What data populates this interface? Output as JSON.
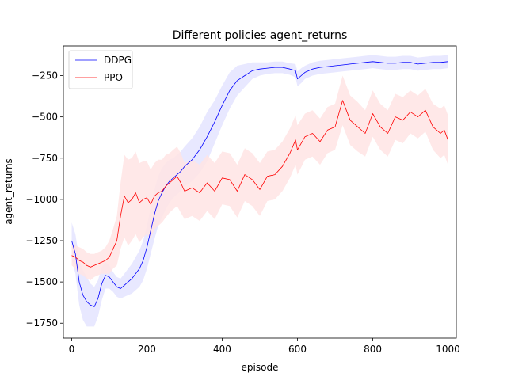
{
  "chart_data": {
    "type": "line",
    "title": "Different policies agent_returns",
    "xlabel": "episode",
    "ylabel": "agent_returns",
    "xlim": [
      -22,
      1022
    ],
    "ylim": [
      -1840,
      -70
    ],
    "xticks": [
      0,
      200,
      400,
      600,
      800,
      1000
    ],
    "yticks": [
      -1750,
      -1500,
      -1250,
      -1000,
      -750,
      -500,
      -250
    ],
    "xtick_labels": [
      "0",
      "200",
      "400",
      "600",
      "800",
      "1000"
    ],
    "ytick_labels": [
      "−1750",
      "−1500",
      "−1250",
      "−1000",
      "−750",
      "−500",
      "−250"
    ],
    "grid": false,
    "legend": {
      "position": "top-left",
      "entries": [
        "DDPG",
        "PPO"
      ]
    },
    "series": [
      {
        "name": "DDPG",
        "color": "#0000ff",
        "band_color": "#e4e4ff",
        "x": [
          0,
          10,
          20,
          30,
          40,
          50,
          60,
          70,
          80,
          90,
          100,
          110,
          120,
          130,
          140,
          150,
          160,
          170,
          180,
          190,
          200,
          210,
          220,
          230,
          240,
          250,
          260,
          270,
          280,
          290,
          300,
          320,
          340,
          360,
          380,
          400,
          420,
          440,
          460,
          480,
          500,
          520,
          540,
          560,
          580,
          595,
          600,
          610,
          620,
          640,
          660,
          680,
          700,
          720,
          740,
          760,
          780,
          800,
          820,
          840,
          860,
          880,
          900,
          920,
          940,
          960,
          980,
          1000
        ],
        "y": [
          -1250,
          -1330,
          -1500,
          -1580,
          -1620,
          -1640,
          -1650,
          -1600,
          -1510,
          -1460,
          -1470,
          -1500,
          -1530,
          -1540,
          -1520,
          -1500,
          -1480,
          -1450,
          -1420,
          -1370,
          -1290,
          -1190,
          -1090,
          -1010,
          -960,
          -920,
          -890,
          -870,
          -850,
          -830,
          -800,
          -760,
          -700,
          -620,
          -530,
          -430,
          -340,
          -280,
          -250,
          -220,
          -210,
          -205,
          -200,
          -200,
          -210,
          -220,
          -270,
          -250,
          -230,
          -210,
          -200,
          -195,
          -190,
          -185,
          -180,
          -175,
          -170,
          -165,
          -170,
          -175,
          -175,
          -170,
          -170,
          -180,
          -175,
          -170,
          -170,
          -165
        ],
        "band": [
          110,
          120,
          140,
          150,
          150,
          130,
          120,
          110,
          100,
          80,
          70,
          60,
          60,
          60,
          70,
          80,
          90,
          100,
          110,
          120,
          130,
          140,
          150,
          150,
          150,
          140,
          130,
          120,
          120,
          120,
          120,
          130,
          140,
          150,
          130,
          120,
          110,
          90,
          70,
          50,
          40,
          35,
          35,
          35,
          35,
          40,
          45,
          45,
          40,
          40,
          40,
          40,
          40,
          40,
          40,
          40,
          40,
          40,
          40,
          40,
          40,
          40,
          40,
          40,
          40,
          40,
          40,
          40
        ]
      },
      {
        "name": "PPO",
        "color": "#ff0000",
        "band_color": "#ffe4e4",
        "x": [
          0,
          10,
          20,
          30,
          40,
          50,
          60,
          70,
          80,
          90,
          100,
          110,
          120,
          130,
          140,
          150,
          160,
          170,
          180,
          190,
          200,
          210,
          220,
          230,
          240,
          250,
          260,
          270,
          280,
          290,
          300,
          320,
          340,
          360,
          380,
          400,
          420,
          440,
          460,
          480,
          500,
          520,
          540,
          560,
          580,
          595,
          600,
          620,
          640,
          660,
          680,
          700,
          720,
          740,
          760,
          780,
          800,
          820,
          840,
          860,
          880,
          900,
          920,
          940,
          960,
          980,
          990,
          1000
        ],
        "y": [
          -1340,
          -1350,
          -1370,
          -1380,
          -1400,
          -1410,
          -1400,
          -1390,
          -1380,
          -1370,
          -1350,
          -1300,
          -1250,
          -1100,
          -980,
          -1020,
          -1000,
          -960,
          -1020,
          -1000,
          -990,
          -1030,
          -980,
          -960,
          -950,
          -920,
          -900,
          -880,
          -860,
          -900,
          -950,
          -930,
          -960,
          -900,
          -950,
          -870,
          -880,
          -950,
          -850,
          -880,
          -940,
          -860,
          -850,
          -800,
          -720,
          -640,
          -700,
          -620,
          -600,
          -650,
          -580,
          -560,
          -400,
          -520,
          -560,
          -600,
          -480,
          -560,
          -600,
          -500,
          -520,
          -470,
          -500,
          -460,
          -560,
          -600,
          -580,
          -640
        ],
        "band": [
          60,
          70,
          80,
          80,
          80,
          80,
          70,
          70,
          70,
          80,
          100,
          120,
          150,
          200,
          250,
          260,
          250,
          250,
          240,
          230,
          220,
          210,
          200,
          200,
          190,
          190,
          180,
          180,
          180,
          180,
          170,
          170,
          170,
          170,
          170,
          160,
          160,
          160,
          160,
          160,
          160,
          150,
          150,
          150,
          150,
          150,
          150,
          140,
          140,
          140,
          140,
          140,
          150,
          150,
          150,
          140,
          140,
          140,
          140,
          140,
          140,
          130,
          130,
          130,
          140,
          150,
          150,
          150
        ]
      }
    ]
  }
}
